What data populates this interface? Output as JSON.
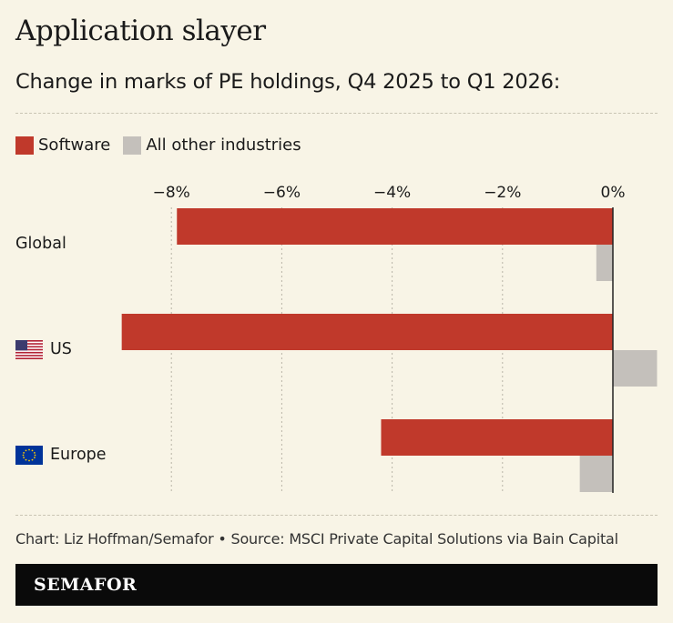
{
  "header": {
    "title": "Application slayer",
    "subtitle": "Change in marks of PE holdings, Q4 2025 to Q1 2026:"
  },
  "footer": {
    "credit": "Chart: Liz Hoffman/Semafor • Source: MSCI Private Capital Solutions via Bain Capital",
    "brand": "SEMAFOR"
  },
  "colors": {
    "software": "#c0392b",
    "other": "#c4c0bb",
    "background": "#f8f4e6",
    "brand_bar": "#0a0a0a"
  },
  "chart_data": {
    "type": "bar",
    "orientation": "horizontal",
    "categories": [
      "Global",
      "US",
      "Europe"
    ],
    "category_icons": [
      "",
      "us-flag-icon",
      "eu-flag-icon"
    ],
    "series": [
      {
        "name": "Software",
        "values": [
          -7.9,
          -8.9,
          -4.2
        ]
      },
      {
        "name": "All other industries",
        "values": [
          -0.3,
          0.8,
          -0.6
        ]
      }
    ],
    "x_ticks": [
      -8,
      -6,
      -4,
      -2,
      0
    ],
    "x_tick_labels": [
      "−8%",
      "−6%",
      "−4%",
      "−2%",
      "0%"
    ],
    "xlim": [
      -9.0,
      0.8
    ],
    "grid": true,
    "legend_position": "top-left",
    "axis_position": "top"
  }
}
